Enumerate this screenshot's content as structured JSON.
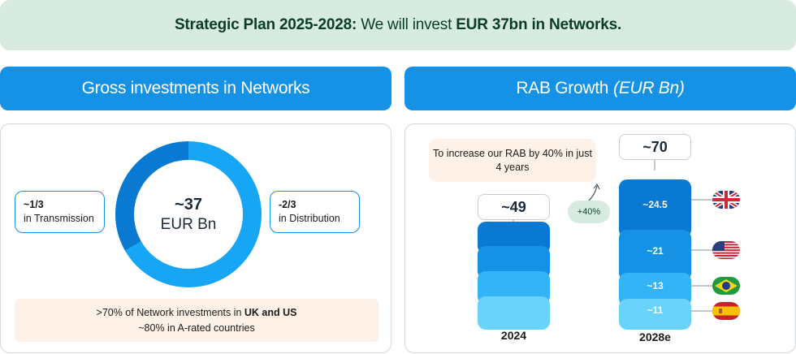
{
  "banner": {
    "title_bold": "Strategic Plan 2025-2028:",
    "text_middle": " We will invest ",
    "amount_bold": "EUR 37bn in Networks."
  },
  "left_panel": {
    "header": "Gross investments in Networks",
    "donut": {
      "total_value": "~37",
      "total_unit": "EUR Bn",
      "segments": [
        {
          "name": "Transmission",
          "fraction": 0.333,
          "color": "#0a79d1"
        },
        {
          "name": "Distribution",
          "fraction": 0.667,
          "color": "#17a5f6"
        }
      ]
    },
    "callout_left": {
      "value": "~1/3",
      "label": "in Transmission"
    },
    "callout_right": {
      "value": "-2/3",
      "label": "in Distribution"
    },
    "note": {
      "line1_prefix": ">70% of Network investments in ",
      "line1_bold": "UK and US",
      "line2": "~80% in A-rated countries"
    }
  },
  "right_panel": {
    "header_title": "RAB Growth",
    "header_unit": "(EUR Bn)",
    "note": "To increase our RAB by 40% in just 4 years",
    "growth_label": "+40%",
    "bars": [
      {
        "year": "2024",
        "total": "~49",
        "segments": [
          {
            "value": 12.25,
            "color": "#0a79d1"
          },
          {
            "value": 12.25,
            "color": "#1592e6"
          },
          {
            "value": 12.25,
            "color": "#33b4f7"
          },
          {
            "value": 12.25,
            "color": "#69d3fb"
          }
        ]
      },
      {
        "year": "2028e",
        "total": "~70",
        "segments": [
          {
            "label": "~24.5",
            "value": 24.5,
            "color": "#0a79d1",
            "country": "UK",
            "flag": "uk-flag-icon"
          },
          {
            "label": "~21",
            "value": 21,
            "color": "#1592e6",
            "country": "US",
            "flag": "us-flag-icon"
          },
          {
            "label": "~13",
            "value": 13,
            "color": "#33b4f7",
            "country": "Brazil",
            "flag": "brazil-flag-icon"
          },
          {
            "label": "~11",
            "value": 11,
            "color": "#69d3fb",
            "country": "Spain",
            "flag": "spain-flag-icon"
          }
        ]
      }
    ]
  }
}
